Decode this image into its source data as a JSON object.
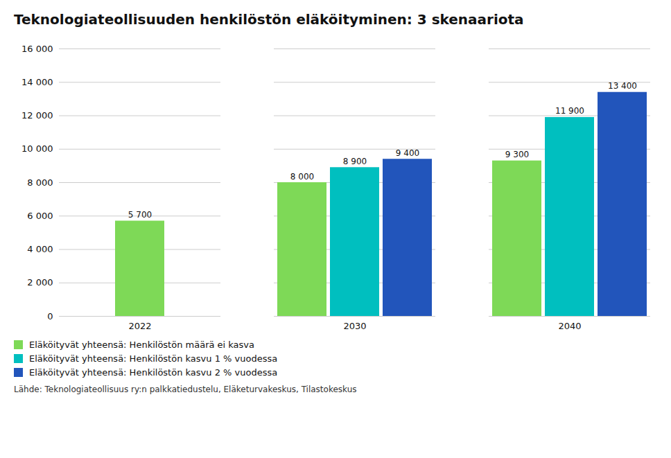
{
  "chart_data": {
    "type": "bar",
    "title": "Teknologiateollisuuden henkilöstön eläköityminen: 3 skenaariota",
    "caption": "Lähde: Teknologiateollisuus ry:n palkkatiedustelu, Eläketurvakeskus, Tilastokeskus",
    "categories": [
      "2022",
      "2030",
      "2040"
    ],
    "series": [
      {
        "name": "Eläköityvät yhteensä: Henkilöstön määrä ei kasva",
        "color": "#7ED957",
        "values": [
          5700,
          8000,
          9300
        ],
        "value_labels": [
          "5 700",
          "8 000",
          "9 300"
        ]
      },
      {
        "name": "Eläköityvät yhteensä: Henkilöstön kasvu 1 % vuodessa",
        "color": "#00BFBF",
        "values": [
          null,
          8900,
          11900
        ],
        "value_labels": [
          null,
          "8 900",
          "11 900"
        ]
      },
      {
        "name": "Eläköityvät yhteensä: Henkilöstön kasvu 2 % vuodessa",
        "color": "#2255BB",
        "values": [
          null,
          9400,
          13400
        ],
        "value_labels": [
          null,
          "9 400",
          "13 400"
        ]
      }
    ],
    "ylim": [
      0,
      16000
    ],
    "yticks": [
      0,
      {
        "value": 2000,
        "label": "2 000"
      },
      {
        "value": 4000,
        "label": "4 000"
      },
      {
        "value": 6000,
        "label": "6 000"
      },
      {
        "value": 8000,
        "label": "8 000"
      },
      {
        "value": 10000,
        "label": "10 000"
      },
      {
        "value": 12000,
        "label": "12 000"
      },
      {
        "value": 14000,
        "label": "14 000"
      },
      {
        "value": 16000,
        "label": "16 000"
      }
    ],
    "grid": true,
    "legend": "lower left",
    "data_labels": true
  }
}
